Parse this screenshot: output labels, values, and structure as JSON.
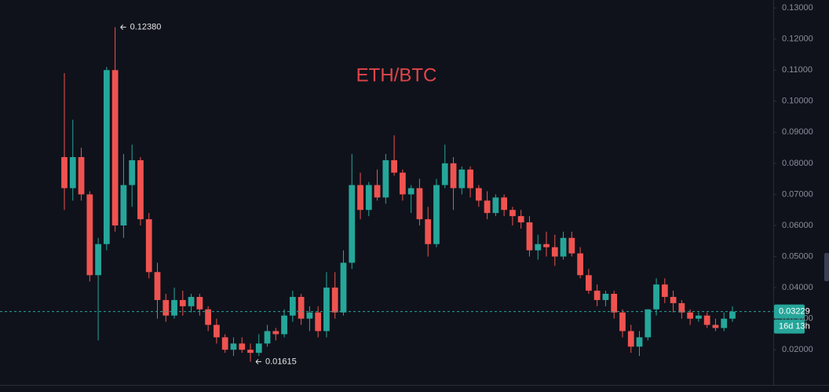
{
  "chart_data": {
    "type": "candlestick",
    "title": "ETH/BTC",
    "open": [
      0.082,
      0.072,
      0.082,
      0.07,
      0.044,
      0.054,
      0.11,
      0.06,
      0.073,
      0.081,
      0.062,
      0.045,
      0.036,
      0.031,
      0.036,
      0.034,
      0.037,
      0.033,
      0.028,
      0.024,
      0.02,
      0.022,
      0.02,
      0.019,
      0.022,
      0.026,
      0.025,
      0.031,
      0.037,
      0.03,
      0.032,
      0.026,
      0.04,
      0.032,
      0.048,
      0.073,
      0.065,
      0.073,
      0.069,
      0.081,
      0.077,
      0.07,
      0.072,
      0.062,
      0.054,
      0.073,
      0.08,
      0.072,
      0.078,
      0.072,
      0.068,
      0.064,
      0.069,
      0.065,
      0.063,
      0.061,
      0.052,
      0.054,
      0.053,
      0.05,
      0.056,
      0.051,
      0.044,
      0.039,
      0.036,
      0.038,
      0.032,
      0.026,
      0.021,
      0.024,
      0.033,
      0.041,
      0.037,
      0.035,
      0.032,
      0.03,
      0.031,
      0.028,
      0.027,
      0.03
    ],
    "high": [
      0.109,
      0.094,
      0.085,
      0.071,
      0.056,
      0.111,
      0.1238,
      0.083,
      0.086,
      0.082,
      0.064,
      0.048,
      0.038,
      0.04,
      0.039,
      0.038,
      0.038,
      0.034,
      0.03,
      0.025,
      0.024,
      0.024,
      0.022,
      0.025,
      0.028,
      0.027,
      0.033,
      0.039,
      0.038,
      0.034,
      0.034,
      0.045,
      0.045,
      0.052,
      0.083,
      0.077,
      0.074,
      0.078,
      0.083,
      0.089,
      0.078,
      0.073,
      0.075,
      0.066,
      0.075,
      0.086,
      0.082,
      0.079,
      0.079,
      0.073,
      0.071,
      0.07,
      0.07,
      0.066,
      0.065,
      0.063,
      0.057,
      0.058,
      0.057,
      0.058,
      0.058,
      0.053,
      0.046,
      0.041,
      0.039,
      0.039,
      0.033,
      0.028,
      0.026,
      0.032,
      0.043,
      0.043,
      0.039,
      0.036,
      0.033,
      0.032,
      0.032,
      0.03,
      0.032,
      0.034
    ],
    "low": [
      0.065,
      0.068,
      0.068,
      0.042,
      0.023,
      0.052,
      0.058,
      0.056,
      0.066,
      0.06,
      0.043,
      0.03,
      0.029,
      0.03,
      0.031,
      0.032,
      0.031,
      0.026,
      0.022,
      0.019,
      0.018,
      0.019,
      0.01615,
      0.018,
      0.021,
      0.023,
      0.024,
      0.029,
      0.028,
      0.026,
      0.024,
      0.024,
      0.03,
      0.031,
      0.046,
      0.062,
      0.063,
      0.068,
      0.067,
      0.076,
      0.068,
      0.064,
      0.06,
      0.05,
      0.053,
      0.072,
      0.065,
      0.07,
      0.069,
      0.066,
      0.062,
      0.063,
      0.063,
      0.06,
      0.059,
      0.05,
      0.049,
      0.05,
      0.047,
      0.049,
      0.05,
      0.043,
      0.038,
      0.034,
      0.034,
      0.03,
      0.024,
      0.019,
      0.018,
      0.023,
      0.031,
      0.035,
      0.032,
      0.03,
      0.028,
      0.029,
      0.027,
      0.026,
      0.026,
      0.029
    ],
    "close": [
      0.072,
      0.082,
      0.07,
      0.044,
      0.054,
      0.11,
      0.06,
      0.073,
      0.081,
      0.062,
      0.045,
      0.036,
      0.031,
      0.036,
      0.034,
      0.037,
      0.033,
      0.028,
      0.024,
      0.02,
      0.022,
      0.02,
      0.019,
      0.022,
      0.026,
      0.025,
      0.031,
      0.037,
      0.03,
      0.032,
      0.026,
      0.04,
      0.032,
      0.048,
      0.073,
      0.065,
      0.073,
      0.069,
      0.081,
      0.077,
      0.07,
      0.072,
      0.062,
      0.054,
      0.073,
      0.08,
      0.072,
      0.078,
      0.072,
      0.068,
      0.064,
      0.069,
      0.065,
      0.063,
      0.061,
      0.052,
      0.054,
      0.053,
      0.05,
      0.056,
      0.051,
      0.044,
      0.039,
      0.036,
      0.038,
      0.032,
      0.026,
      0.021,
      0.024,
      0.033,
      0.041,
      0.037,
      0.035,
      0.032,
      0.03,
      0.031,
      0.028,
      0.027,
      0.03,
      0.03229
    ],
    "up_color": "#26a69a",
    "down_color": "#ef5350",
    "ylim": [
      0.0155,
      0.1318
    ],
    "yticks": [
      {
        "value": 0.02,
        "label": "0.02000"
      },
      {
        "value": 0.03,
        "label": "0.03000"
      },
      {
        "value": 0.04,
        "label": "0.04000"
      },
      {
        "value": 0.05,
        "label": "0.05000"
      },
      {
        "value": 0.06,
        "label": "0.06000"
      },
      {
        "value": 0.07,
        "label": "0.07000"
      },
      {
        "value": 0.08,
        "label": "0.08000"
      },
      {
        "value": 0.09,
        "label": "0.09000"
      },
      {
        "value": 0.1,
        "label": "0.10000"
      },
      {
        "value": 0.11,
        "label": "0.11000"
      },
      {
        "value": 0.12,
        "label": "0.12000"
      },
      {
        "value": 0.13,
        "label": "0.13000"
      }
    ],
    "annotations": [
      {
        "value": 0.1238,
        "label": "0.12380"
      },
      {
        "value": 0.01615,
        "label": "0.01615"
      }
    ],
    "last_price": 0.03229,
    "countdown": "16d 13h"
  }
}
